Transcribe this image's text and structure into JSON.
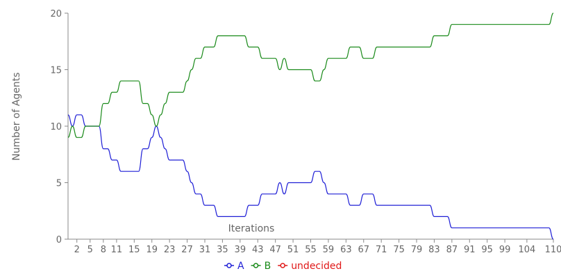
{
  "chart_data": {
    "type": "line",
    "xlabel": "Iterations",
    "ylabel": "Number of Agents",
    "x_tick_labels": [
      "2",
      "5",
      "8",
      "11",
      "15",
      "19",
      "23",
      "27",
      "31",
      "35",
      "39",
      "43",
      "47",
      "51",
      "55",
      "59",
      "63",
      "67",
      "71",
      "75",
      "79",
      "83",
      "87",
      "91",
      "95",
      "99",
      "104",
      "110"
    ],
    "x_tick_values": [
      2,
      5,
      8,
      11,
      15,
      19,
      23,
      27,
      31,
      35,
      39,
      43,
      47,
      51,
      55,
      59,
      63,
      67,
      71,
      75,
      79,
      83,
      87,
      91,
      95,
      99,
      104,
      110
    ],
    "xlim": [
      0,
      110
    ],
    "ylim": [
      0,
      20
    ],
    "y_ticks": [
      0,
      5,
      10,
      15,
      20
    ],
    "legend_position": "bottom",
    "series": [
      {
        "name": "A",
        "color": "#1f1fd6",
        "points": [
          [
            0,
            11
          ],
          [
            1,
            10
          ],
          [
            2,
            11
          ],
          [
            3,
            11
          ],
          [
            4,
            10
          ],
          [
            5,
            10
          ],
          [
            6,
            10
          ],
          [
            7,
            10
          ],
          [
            8,
            8
          ],
          [
            9,
            8
          ],
          [
            10,
            7
          ],
          [
            11,
            7
          ],
          [
            12,
            6
          ],
          [
            13,
            6
          ],
          [
            14,
            6
          ],
          [
            15,
            6
          ],
          [
            16,
            6
          ],
          [
            17,
            8
          ],
          [
            18,
            8
          ],
          [
            19,
            9
          ],
          [
            20,
            10
          ],
          [
            21,
            9
          ],
          [
            22,
            8
          ],
          [
            23,
            7
          ],
          [
            24,
            7
          ],
          [
            25,
            7
          ],
          [
            26,
            7
          ],
          [
            27,
            6
          ],
          [
            28,
            5
          ],
          [
            29,
            4
          ],
          [
            30,
            4
          ],
          [
            31,
            3
          ],
          [
            32,
            3
          ],
          [
            33,
            3
          ],
          [
            34,
            2
          ],
          [
            35,
            2
          ],
          [
            36,
            2
          ],
          [
            37,
            2
          ],
          [
            38,
            2
          ],
          [
            39,
            2
          ],
          [
            40,
            2
          ],
          [
            41,
            3
          ],
          [
            42,
            3
          ],
          [
            43,
            3
          ],
          [
            44,
            4
          ],
          [
            45,
            4
          ],
          [
            46,
            4
          ],
          [
            47,
            4
          ],
          [
            48,
            5
          ],
          [
            49,
            4
          ],
          [
            50,
            5
          ],
          [
            51,
            5
          ],
          [
            52,
            5
          ],
          [
            53,
            5
          ],
          [
            54,
            5
          ],
          [
            55,
            5
          ],
          [
            56,
            6
          ],
          [
            57,
            6
          ],
          [
            58,
            5
          ],
          [
            59,
            4
          ],
          [
            60,
            4
          ],
          [
            61,
            4
          ],
          [
            62,
            4
          ],
          [
            63,
            4
          ],
          [
            64,
            3
          ],
          [
            65,
            3
          ],
          [
            66,
            3
          ],
          [
            67,
            4
          ],
          [
            68,
            4
          ],
          [
            69,
            4
          ],
          [
            70,
            3
          ],
          [
            71,
            3
          ],
          [
            72,
            3
          ],
          [
            73,
            3
          ],
          [
            74,
            3
          ],
          [
            75,
            3
          ],
          [
            76,
            3
          ],
          [
            77,
            3
          ],
          [
            78,
            3
          ],
          [
            79,
            3
          ],
          [
            80,
            3
          ],
          [
            81,
            3
          ],
          [
            82,
            3
          ],
          [
            83,
            2
          ],
          [
            84,
            2
          ],
          [
            85,
            2
          ],
          [
            86,
            2
          ],
          [
            87,
            1
          ],
          [
            88,
            1
          ],
          [
            89,
            1
          ],
          [
            90,
            1
          ],
          [
            91,
            1
          ],
          [
            92,
            1
          ],
          [
            93,
            1
          ],
          [
            94,
            1
          ],
          [
            95,
            1
          ],
          [
            96,
            1
          ],
          [
            97,
            1
          ],
          [
            98,
            1
          ],
          [
            99,
            1
          ],
          [
            100,
            1
          ],
          [
            101,
            1
          ],
          [
            102,
            1
          ],
          [
            103,
            1
          ],
          [
            104,
            1
          ],
          [
            105,
            1
          ],
          [
            106,
            1
          ],
          [
            107,
            1
          ],
          [
            108,
            1
          ],
          [
            109,
            1
          ],
          [
            110,
            0
          ]
        ]
      },
      {
        "name": "B",
        "color": "#1a8a1a",
        "points": [
          [
            0,
            9
          ],
          [
            1,
            10
          ],
          [
            2,
            9
          ],
          [
            3,
            9
          ],
          [
            4,
            10
          ],
          [
            5,
            10
          ],
          [
            6,
            10
          ],
          [
            7,
            10
          ],
          [
            8,
            12
          ],
          [
            9,
            12
          ],
          [
            10,
            13
          ],
          [
            11,
            13
          ],
          [
            12,
            14
          ],
          [
            13,
            14
          ],
          [
            14,
            14
          ],
          [
            15,
            14
          ],
          [
            16,
            14
          ],
          [
            17,
            12
          ],
          [
            18,
            12
          ],
          [
            19,
            11
          ],
          [
            20,
            10
          ],
          [
            21,
            11
          ],
          [
            22,
            12
          ],
          [
            23,
            13
          ],
          [
            24,
            13
          ],
          [
            25,
            13
          ],
          [
            26,
            13
          ],
          [
            27,
            14
          ],
          [
            28,
            15
          ],
          [
            29,
            16
          ],
          [
            30,
            16
          ],
          [
            31,
            17
          ],
          [
            32,
            17
          ],
          [
            33,
            17
          ],
          [
            34,
            18
          ],
          [
            35,
            18
          ],
          [
            36,
            18
          ],
          [
            37,
            18
          ],
          [
            38,
            18
          ],
          [
            39,
            18
          ],
          [
            40,
            18
          ],
          [
            41,
            17
          ],
          [
            42,
            17
          ],
          [
            43,
            17
          ],
          [
            44,
            16
          ],
          [
            45,
            16
          ],
          [
            46,
            16
          ],
          [
            47,
            16
          ],
          [
            48,
            15
          ],
          [
            49,
            16
          ],
          [
            50,
            15
          ],
          [
            51,
            15
          ],
          [
            52,
            15
          ],
          [
            53,
            15
          ],
          [
            54,
            15
          ],
          [
            55,
            15
          ],
          [
            56,
            14
          ],
          [
            57,
            14
          ],
          [
            58,
            15
          ],
          [
            59,
            16
          ],
          [
            60,
            16
          ],
          [
            61,
            16
          ],
          [
            62,
            16
          ],
          [
            63,
            16
          ],
          [
            64,
            17
          ],
          [
            65,
            17
          ],
          [
            66,
            17
          ],
          [
            67,
            16
          ],
          [
            68,
            16
          ],
          [
            69,
            16
          ],
          [
            70,
            17
          ],
          [
            71,
            17
          ],
          [
            72,
            17
          ],
          [
            73,
            17
          ],
          [
            74,
            17
          ],
          [
            75,
            17
          ],
          [
            76,
            17
          ],
          [
            77,
            17
          ],
          [
            78,
            17
          ],
          [
            79,
            17
          ],
          [
            80,
            17
          ],
          [
            81,
            17
          ],
          [
            82,
            17
          ],
          [
            83,
            18
          ],
          [
            84,
            18
          ],
          [
            85,
            18
          ],
          [
            86,
            18
          ],
          [
            87,
            19
          ],
          [
            88,
            19
          ],
          [
            89,
            19
          ],
          [
            90,
            19
          ],
          [
            91,
            19
          ],
          [
            92,
            19
          ],
          [
            93,
            19
          ],
          [
            94,
            19
          ],
          [
            95,
            19
          ],
          [
            96,
            19
          ],
          [
            97,
            19
          ],
          [
            98,
            19
          ],
          [
            99,
            19
          ],
          [
            100,
            19
          ],
          [
            101,
            19
          ],
          [
            102,
            19
          ],
          [
            103,
            19
          ],
          [
            104,
            19
          ],
          [
            105,
            19
          ],
          [
            106,
            19
          ],
          [
            107,
            19
          ],
          [
            108,
            19
          ],
          [
            109,
            19
          ],
          [
            110,
            20
          ]
        ]
      },
      {
        "name": "undecided",
        "color": "#e01818",
        "points": []
      }
    ]
  }
}
